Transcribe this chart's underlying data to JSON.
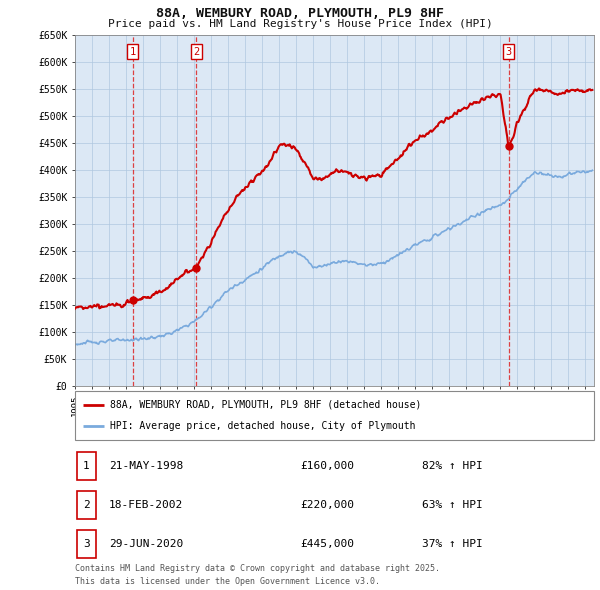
{
  "title1": "88A, WEMBURY ROAD, PLYMOUTH, PL9 8HF",
  "title2": "Price paid vs. HM Land Registry's House Price Index (HPI)",
  "background_color": "#ffffff",
  "chart_bg_color": "#dce8f5",
  "grid_color": "#b0c8e0",
  "sale_color": "#cc0000",
  "hpi_color": "#7aaadd",
  "legend_label_sale": "88A, WEMBURY ROAD, PLYMOUTH, PL9 8HF (detached house)",
  "legend_label_hpi": "HPI: Average price, detached house, City of Plymouth",
  "footnote1": "Contains HM Land Registry data © Crown copyright and database right 2025.",
  "footnote2": "This data is licensed under the Open Government Licence v3.0.",
  "xmin": 1995,
  "xmax": 2025.5,
  "ymin": 0,
  "ymax": 650000,
  "yticks": [
    0,
    50000,
    100000,
    150000,
    200000,
    250000,
    300000,
    350000,
    400000,
    450000,
    500000,
    550000,
    600000,
    650000
  ],
  "ytick_labels": [
    "£0",
    "£50K",
    "£100K",
    "£150K",
    "£200K",
    "£250K",
    "£300K",
    "£350K",
    "£400K",
    "£450K",
    "£500K",
    "£550K",
    "£600K",
    "£650K"
  ],
  "xticks": [
    1995,
    1996,
    1997,
    1998,
    1999,
    2000,
    2001,
    2002,
    2003,
    2004,
    2005,
    2006,
    2007,
    2008,
    2009,
    2010,
    2011,
    2012,
    2013,
    2014,
    2015,
    2016,
    2017,
    2018,
    2019,
    2020,
    2021,
    2022,
    2023,
    2024,
    2025
  ],
  "sale_years": [
    1998.38,
    2002.13,
    2020.49
  ],
  "sale_prices": [
    160000,
    220000,
    445000
  ],
  "sale_nums": [
    "1",
    "2",
    "3"
  ],
  "table_rows": [
    [
      "1",
      "21-MAY-1998",
      "£160,000",
      "82% ↑ HPI"
    ],
    [
      "2",
      "18-FEB-2002",
      "£220,000",
      "63% ↑ HPI"
    ],
    [
      "3",
      "29-JUN-2020",
      "£445,000",
      "37% ↑ HPI"
    ]
  ]
}
